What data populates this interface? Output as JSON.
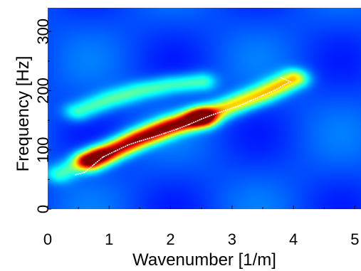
{
  "chart_data": {
    "type": "heatmap",
    "title": "",
    "xlabel": "Wavenumber [1/m]",
    "ylabel": "Frequency [Hz]",
    "xlim": [
      0,
      5.1
    ],
    "ylim": [
      0,
      340
    ],
    "xticks": [
      "0",
      "1",
      "2",
      "3",
      "4",
      "5"
    ],
    "yticks": [
      "0",
      "100",
      "200",
      "300"
    ],
    "grid": false,
    "colormap": "jet",
    "energy_ridges": [
      {
        "x": [
          0.7,
          1.0,
          1.5,
          2.0,
          2.5
        ],
        "y": [
          82,
          96,
          120,
          140,
          155
        ],
        "peak": 1.0
      },
      {
        "x": [
          2.5,
          3.0,
          3.5,
          4.0
        ],
        "y": [
          155,
          175,
          195,
          220
        ],
        "peak": 0.6
      },
      {
        "x": [
          0.5,
          1.0,
          1.5,
          2.0,
          2.5
        ],
        "y": [
          165,
          185,
          200,
          210,
          215
        ],
        "peak": 0.33
      },
      {
        "x": [
          0.2,
          0.5,
          0.8
        ],
        "y": [
          60,
          75,
          90
        ],
        "peak": 0.3
      }
    ],
    "dispersion_curve": {
      "color": "#ffffff",
      "x": [
        0.45,
        0.6,
        0.75,
        0.9,
        1.1,
        1.3,
        1.5,
        1.7,
        1.9,
        2.1,
        2.3,
        2.5,
        2.7,
        2.9,
        3.1,
        3.3,
        3.5,
        3.7,
        3.85,
        3.95,
        3.8
      ],
      "y": [
        58,
        62,
        75,
        88,
        98,
        108,
        115,
        121,
        128,
        135,
        143,
        152,
        160,
        167,
        174,
        183,
        192,
        201,
        210,
        215,
        222
      ]
    }
  }
}
